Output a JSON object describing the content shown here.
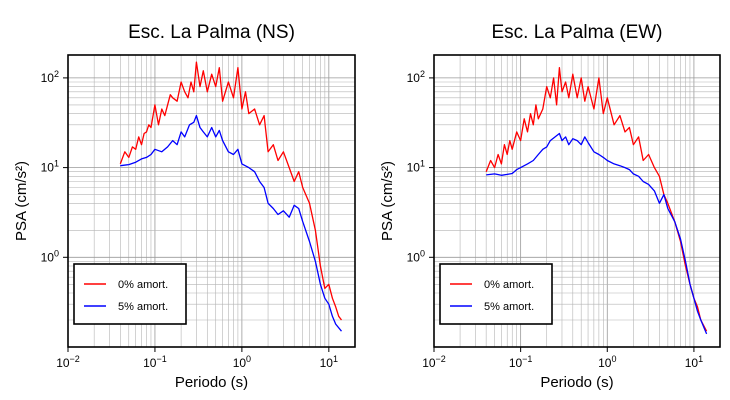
{
  "chart_data": [
    {
      "type": "line",
      "title": "Esc. La Palma (NS)",
      "xlabel": "Periodo (s)",
      "ylabel": "PSA (cm/s²)",
      "xscale": "log",
      "yscale": "log",
      "xlim": [
        0.01,
        20
      ],
      "ylim": [
        0.1,
        180
      ],
      "xticks": [
        {
          "value": 0.01,
          "base": "10",
          "exp": "−2"
        },
        {
          "value": 0.1,
          "base": "10",
          "exp": "−1"
        },
        {
          "value": 1,
          "base": "10",
          "exp": "0"
        },
        {
          "value": 10,
          "base": "10",
          "exp": "1"
        }
      ],
      "yticks": [
        {
          "value": 1,
          "base": "10",
          "exp": "0"
        },
        {
          "value": 10,
          "base": "10",
          "exp": "1"
        },
        {
          "value": 100,
          "base": "10",
          "exp": "2"
        }
      ],
      "grid": true,
      "legend_position": "bottom-left",
      "series": [
        {
          "name": "0% amort.",
          "color": "#ff0000",
          "x": [
            0.04,
            0.045,
            0.05,
            0.055,
            0.06,
            0.065,
            0.07,
            0.075,
            0.08,
            0.085,
            0.09,
            0.1,
            0.11,
            0.12,
            0.13,
            0.14,
            0.15,
            0.16,
            0.18,
            0.2,
            0.22,
            0.24,
            0.26,
            0.28,
            0.3,
            0.33,
            0.36,
            0.4,
            0.45,
            0.5,
            0.55,
            0.6,
            0.7,
            0.8,
            0.9,
            1.0,
            1.1,
            1.2,
            1.4,
            1.6,
            1.8,
            2.0,
            2.3,
            2.6,
            3.0,
            3.5,
            4.0,
            4.5,
            5.0,
            6.0,
            7.0,
            8.0,
            9.0,
            10.0,
            11.0,
            12.0,
            13.0,
            14.0
          ],
          "values": [
            11,
            15,
            13,
            17,
            16,
            22,
            18,
            24,
            25,
            30,
            28,
            50,
            30,
            45,
            38,
            50,
            65,
            60,
            55,
            90,
            70,
            60,
            90,
            70,
            150,
            80,
            120,
            70,
            110,
            80,
            130,
            55,
            90,
            60,
            130,
            45,
            70,
            40,
            45,
            30,
            38,
            15,
            18,
            12,
            15,
            10,
            7,
            9,
            6,
            4,
            2,
            0.8,
            0.45,
            0.5,
            0.35,
            0.28,
            0.22,
            0.2
          ]
        },
        {
          "name": "5% amort.",
          "color": "#0000ff",
          "x": [
            0.04,
            0.05,
            0.06,
            0.07,
            0.08,
            0.09,
            0.1,
            0.12,
            0.14,
            0.16,
            0.18,
            0.2,
            0.22,
            0.25,
            0.28,
            0.3,
            0.33,
            0.36,
            0.4,
            0.45,
            0.5,
            0.55,
            0.6,
            0.7,
            0.8,
            0.9,
            1.0,
            1.2,
            1.4,
            1.6,
            1.8,
            2.0,
            2.3,
            2.6,
            3.0,
            3.5,
            4.0,
            4.5,
            5.0,
            6.0,
            7.0,
            8.0,
            9.0,
            10.0,
            11.0,
            12.0,
            14.0
          ],
          "values": [
            10.5,
            10.8,
            11.5,
            12.5,
            13,
            14,
            16,
            15,
            17,
            20,
            18,
            25,
            22,
            30,
            32,
            38,
            28,
            25,
            22,
            28,
            22,
            26,
            20,
            15,
            14,
            16,
            11,
            10,
            9,
            7,
            6,
            4,
            3.5,
            3,
            3.3,
            2.8,
            3.8,
            3.5,
            2.5,
            1.5,
            0.9,
            0.5,
            0.35,
            0.3,
            0.22,
            0.18,
            0.15
          ]
        }
      ]
    },
    {
      "type": "line",
      "title": "Esc. La Palma (EW)",
      "xlabel": "Periodo (s)",
      "ylabel": "PSA (cm/s²)",
      "xscale": "log",
      "yscale": "log",
      "xlim": [
        0.01,
        20
      ],
      "ylim": [
        0.1,
        180
      ],
      "xticks": [
        {
          "value": 0.01,
          "base": "10",
          "exp": "−2"
        },
        {
          "value": 0.1,
          "base": "10",
          "exp": "−1"
        },
        {
          "value": 1,
          "base": "10",
          "exp": "0"
        },
        {
          "value": 10,
          "base": "10",
          "exp": "1"
        }
      ],
      "yticks": [
        {
          "value": 1,
          "base": "10",
          "exp": "0"
        },
        {
          "value": 10,
          "base": "10",
          "exp": "1"
        },
        {
          "value": 100,
          "base": "10",
          "exp": "2"
        }
      ],
      "grid": true,
      "legend_position": "bottom-left",
      "series": [
        {
          "name": "0% amort.",
          "color": "#ff0000",
          "x": [
            0.04,
            0.045,
            0.05,
            0.055,
            0.06,
            0.065,
            0.07,
            0.075,
            0.08,
            0.09,
            0.1,
            0.11,
            0.12,
            0.13,
            0.14,
            0.15,
            0.16,
            0.18,
            0.2,
            0.22,
            0.24,
            0.26,
            0.28,
            0.3,
            0.33,
            0.36,
            0.4,
            0.45,
            0.5,
            0.55,
            0.6,
            0.7,
            0.8,
            0.9,
            1.0,
            1.2,
            1.4,
            1.6,
            1.8,
            2.0,
            2.3,
            2.6,
            3.0,
            3.5,
            4.0,
            4.5,
            5.0,
            6.0,
            7.0,
            8.0,
            9.0,
            10.0,
            11.0,
            12.0,
            14.0
          ],
          "values": [
            9,
            12,
            10,
            14,
            11,
            18,
            14,
            20,
            16,
            25,
            20,
            35,
            25,
            40,
            30,
            50,
            35,
            45,
            80,
            60,
            100,
            50,
            130,
            70,
            90,
            60,
            110,
            60,
            100,
            55,
            80,
            45,
            100,
            40,
            60,
            30,
            38,
            25,
            28,
            18,
            22,
            12,
            14,
            10,
            8,
            5,
            4,
            2.5,
            1.5,
            0.8,
            0.5,
            0.35,
            0.28,
            0.2,
            0.15
          ]
        },
        {
          "name": "5% amort.",
          "color": "#0000ff",
          "x": [
            0.04,
            0.05,
            0.06,
            0.07,
            0.08,
            0.09,
            0.1,
            0.12,
            0.14,
            0.16,
            0.18,
            0.2,
            0.22,
            0.25,
            0.28,
            0.3,
            0.33,
            0.36,
            0.4,
            0.45,
            0.5,
            0.55,
            0.6,
            0.7,
            0.8,
            0.9,
            1.0,
            1.2,
            1.4,
            1.6,
            1.8,
            2.0,
            2.3,
            2.6,
            3.0,
            3.5,
            4.0,
            4.5,
            5.0,
            6.0,
            7.0,
            8.0,
            9.0,
            10.0,
            11.0,
            12.0,
            14.0
          ],
          "values": [
            8.3,
            8.5,
            8.2,
            8.4,
            8.6,
            9.5,
            10,
            11,
            12,
            14,
            16,
            17,
            20,
            22,
            24,
            20,
            22,
            18,
            21,
            20,
            18,
            22,
            19,
            15,
            14,
            13,
            12,
            11,
            10.5,
            10,
            9.5,
            8.5,
            8,
            7,
            6.5,
            5.5,
            4,
            5,
            3.5,
            2.5,
            1.6,
            0.9,
            0.5,
            0.35,
            0.25,
            0.2,
            0.14
          ]
        }
      ]
    }
  ]
}
